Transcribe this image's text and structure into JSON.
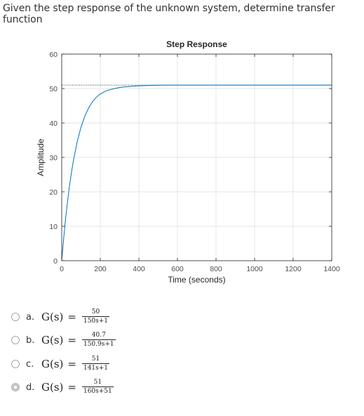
{
  "question": {
    "text": "Given the step response of the unknown system, determine transfer function"
  },
  "chart_data": {
    "type": "line",
    "title": "Step Response",
    "xlabel": "Time (seconds)",
    "ylabel": "Amplitude",
    "xlim": [
      0,
      1400
    ],
    "ylim": [
      0,
      60
    ],
    "xticks": [
      0,
      200,
      400,
      600,
      800,
      1000,
      1200,
      1400
    ],
    "xtick_labels": [
      "0",
      "200",
      "400",
      "600",
      "800",
      "1000",
      "1200",
      "1400"
    ],
    "yticks": [
      0,
      10,
      20,
      30,
      40,
      50,
      60
    ],
    "ytick_labels": [
      "0",
      "10",
      "20",
      "30",
      "40",
      "50",
      "60"
    ],
    "grid": true,
    "steady_state": 51,
    "series": [
      {
        "color": "#0072bd",
        "x": [
          0,
          10,
          20,
          30,
          40,
          50,
          60,
          80,
          100,
          120,
          140,
          160,
          180,
          200,
          225,
          250,
          275,
          300,
          325,
          350,
          375,
          400,
          450,
          500,
          550,
          600,
          650,
          700,
          750,
          800,
          900,
          1000,
          1100,
          1200,
          1300,
          1400
        ],
        "y": [
          0,
          6.5,
          12.2,
          17.2,
          21.6,
          25.5,
          28.9,
          34.5,
          38.8,
          42.0,
          44.4,
          46.2,
          47.5,
          48.4,
          49.2,
          49.7,
          50.0,
          50.3,
          50.5,
          50.6,
          50.7,
          50.8,
          50.9,
          50.95,
          51,
          51,
          51,
          51,
          51,
          51,
          51,
          51,
          51,
          51,
          51,
          51
        ]
      }
    ]
  },
  "options": [
    {
      "letter": "a.",
      "lhs": "G(s)",
      "eq": "=",
      "num": "50",
      "den": "150s+1",
      "selected": false
    },
    {
      "letter": "b.",
      "lhs": "G(s)",
      "eq": "=",
      "num": "40.7",
      "den": "150.9s+1",
      "selected": false
    },
    {
      "letter": "c.",
      "lhs": "G(s)",
      "eq": "=",
      "num": "51",
      "den": "141s+1",
      "selected": false
    },
    {
      "letter": "d.",
      "lhs": "G(s)",
      "eq": "=",
      "num": "51",
      "den": "160s+51",
      "selected": true
    }
  ]
}
